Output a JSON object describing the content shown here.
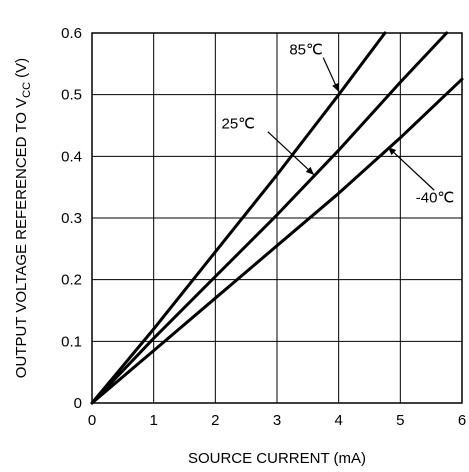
{
  "chart_data": {
    "type": "line",
    "xlabel": "SOURCE CURRENT (mA)",
    "ylabel": {
      "prefix": "OUTPUT VOLTAGE REFERENCED TO V",
      "sub": "CC",
      "suffix": " (V)"
    },
    "xlim": [
      0,
      6
    ],
    "ylim": [
      0,
      0.6
    ],
    "x_ticks": [
      "0",
      "1",
      "2",
      "3",
      "4",
      "5",
      "6"
    ],
    "y_ticks": [
      "0",
      "0.1",
      "0.2",
      "0.3",
      "0.4",
      "0.5",
      "0.6"
    ],
    "grid": true,
    "series": [
      {
        "name": "85℃",
        "x": [
          0,
          1,
          2,
          3,
          4,
          4.75
        ],
        "y": [
          0,
          0.12,
          0.245,
          0.37,
          0.5,
          0.6
        ]
      },
      {
        "name": "25℃",
        "x": [
          0,
          1,
          2,
          3,
          4,
          5,
          5.75
        ],
        "y": [
          0,
          0.105,
          0.205,
          0.305,
          0.41,
          0.52,
          0.6
        ]
      },
      {
        "name": "-40℃",
        "x": [
          0,
          1,
          2,
          3,
          4,
          5,
          6
        ],
        "y": [
          0,
          0.085,
          0.17,
          0.255,
          0.34,
          0.43,
          0.525
        ]
      }
    ],
    "annotations": [
      {
        "text": "85℃",
        "arrow_to": [
          4.0,
          0.505
        ]
      },
      {
        "text": "25℃",
        "arrow_to": [
          3.6,
          0.37
        ]
      },
      {
        "text": "-40℃",
        "arrow_to": [
          4.8,
          0.415
        ]
      }
    ]
  }
}
